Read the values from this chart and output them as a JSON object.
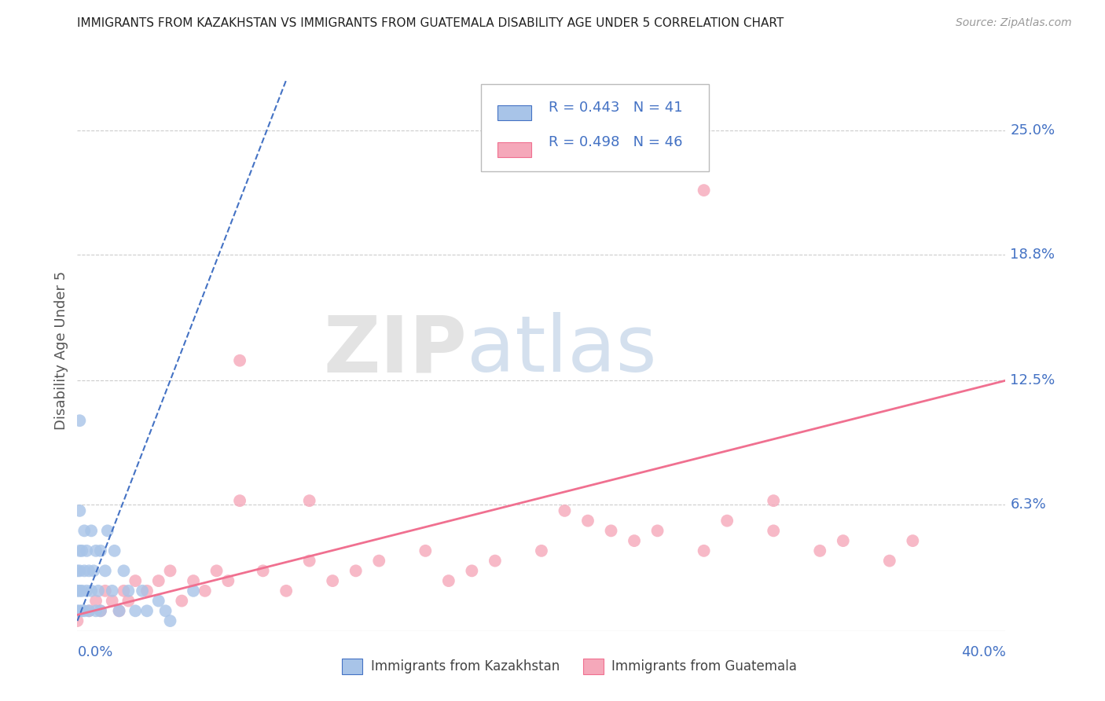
{
  "title": "IMMIGRANTS FROM KAZAKHSTAN VS IMMIGRANTS FROM GUATEMALA DISABILITY AGE UNDER 5 CORRELATION CHART",
  "source": "Source: ZipAtlas.com",
  "ylabel": "Disability Age Under 5",
  "xlabel_bottom_left": "0.0%",
  "xlabel_bottom_right": "40.0%",
  "ytick_labels": [
    "25.0%",
    "18.8%",
    "12.5%",
    "6.3%"
  ],
  "ytick_values": [
    0.25,
    0.188,
    0.125,
    0.063
  ],
  "xlim": [
    0.0,
    0.4
  ],
  "ylim": [
    0.0,
    0.28
  ],
  "kazakhstan_R": 0.443,
  "kazakhstan_N": 41,
  "guatemala_R": 0.498,
  "guatemala_N": 46,
  "kazakhstan_color": "#a8c4e8",
  "guatemala_color": "#f5a8ba",
  "kazakhstan_line_color": "#4472c4",
  "guatemala_line_color": "#f07090",
  "background_color": "#ffffff",
  "grid_color": "#cccccc",
  "title_color": "#222222",
  "axis_label_color": "#4472c4",
  "watermark_zip_color": "#d0d8e8",
  "watermark_atlas_color": "#b8c8e0",
  "legend_border_color": "#bbbbbb",
  "bottom_axis_color": "#aaaaaa",
  "ylabel_color": "#555555",
  "kaz_x": [
    0.0,
    0.0,
    0.0,
    0.001,
    0.001,
    0.001,
    0.001,
    0.001,
    0.002,
    0.002,
    0.002,
    0.003,
    0.003,
    0.003,
    0.004,
    0.004,
    0.005,
    0.005,
    0.006,
    0.006,
    0.007,
    0.008,
    0.008,
    0.009,
    0.01,
    0.01,
    0.012,
    0.013,
    0.015,
    0.016,
    0.018,
    0.02,
    0.022,
    0.025,
    0.028,
    0.03,
    0.035,
    0.038,
    0.04,
    0.05,
    0.001
  ],
  "kaz_y": [
    0.01,
    0.02,
    0.03,
    0.01,
    0.02,
    0.03,
    0.04,
    0.06,
    0.01,
    0.02,
    0.04,
    0.01,
    0.03,
    0.05,
    0.02,
    0.04,
    0.01,
    0.03,
    0.02,
    0.05,
    0.03,
    0.01,
    0.04,
    0.02,
    0.01,
    0.04,
    0.03,
    0.05,
    0.02,
    0.04,
    0.01,
    0.03,
    0.02,
    0.01,
    0.02,
    0.01,
    0.015,
    0.01,
    0.005,
    0.02,
    0.105
  ],
  "gua_x": [
    0.0,
    0.005,
    0.008,
    0.01,
    0.012,
    0.015,
    0.018,
    0.02,
    0.022,
    0.025,
    0.03,
    0.035,
    0.04,
    0.045,
    0.05,
    0.055,
    0.06,
    0.065,
    0.07,
    0.08,
    0.09,
    0.1,
    0.11,
    0.12,
    0.13,
    0.15,
    0.16,
    0.17,
    0.18,
    0.2,
    0.22,
    0.24,
    0.25,
    0.27,
    0.28,
    0.3,
    0.32,
    0.33,
    0.35,
    0.36,
    0.27,
    0.07,
    0.3,
    0.21,
    0.23,
    0.1
  ],
  "gua_y": [
    0.005,
    0.01,
    0.015,
    0.01,
    0.02,
    0.015,
    0.01,
    0.02,
    0.015,
    0.025,
    0.02,
    0.025,
    0.03,
    0.015,
    0.025,
    0.02,
    0.03,
    0.025,
    0.065,
    0.03,
    0.02,
    0.035,
    0.025,
    0.03,
    0.035,
    0.04,
    0.025,
    0.03,
    0.035,
    0.04,
    0.055,
    0.045,
    0.05,
    0.04,
    0.055,
    0.05,
    0.04,
    0.045,
    0.035,
    0.045,
    0.22,
    0.135,
    0.065,
    0.06,
    0.05,
    0.065
  ],
  "kaz_line_x": [
    0.0,
    0.09
  ],
  "kaz_line_y": [
    0.005,
    0.275
  ],
  "gua_line_x": [
    0.0,
    0.4
  ],
  "gua_line_y": [
    0.008,
    0.125
  ]
}
